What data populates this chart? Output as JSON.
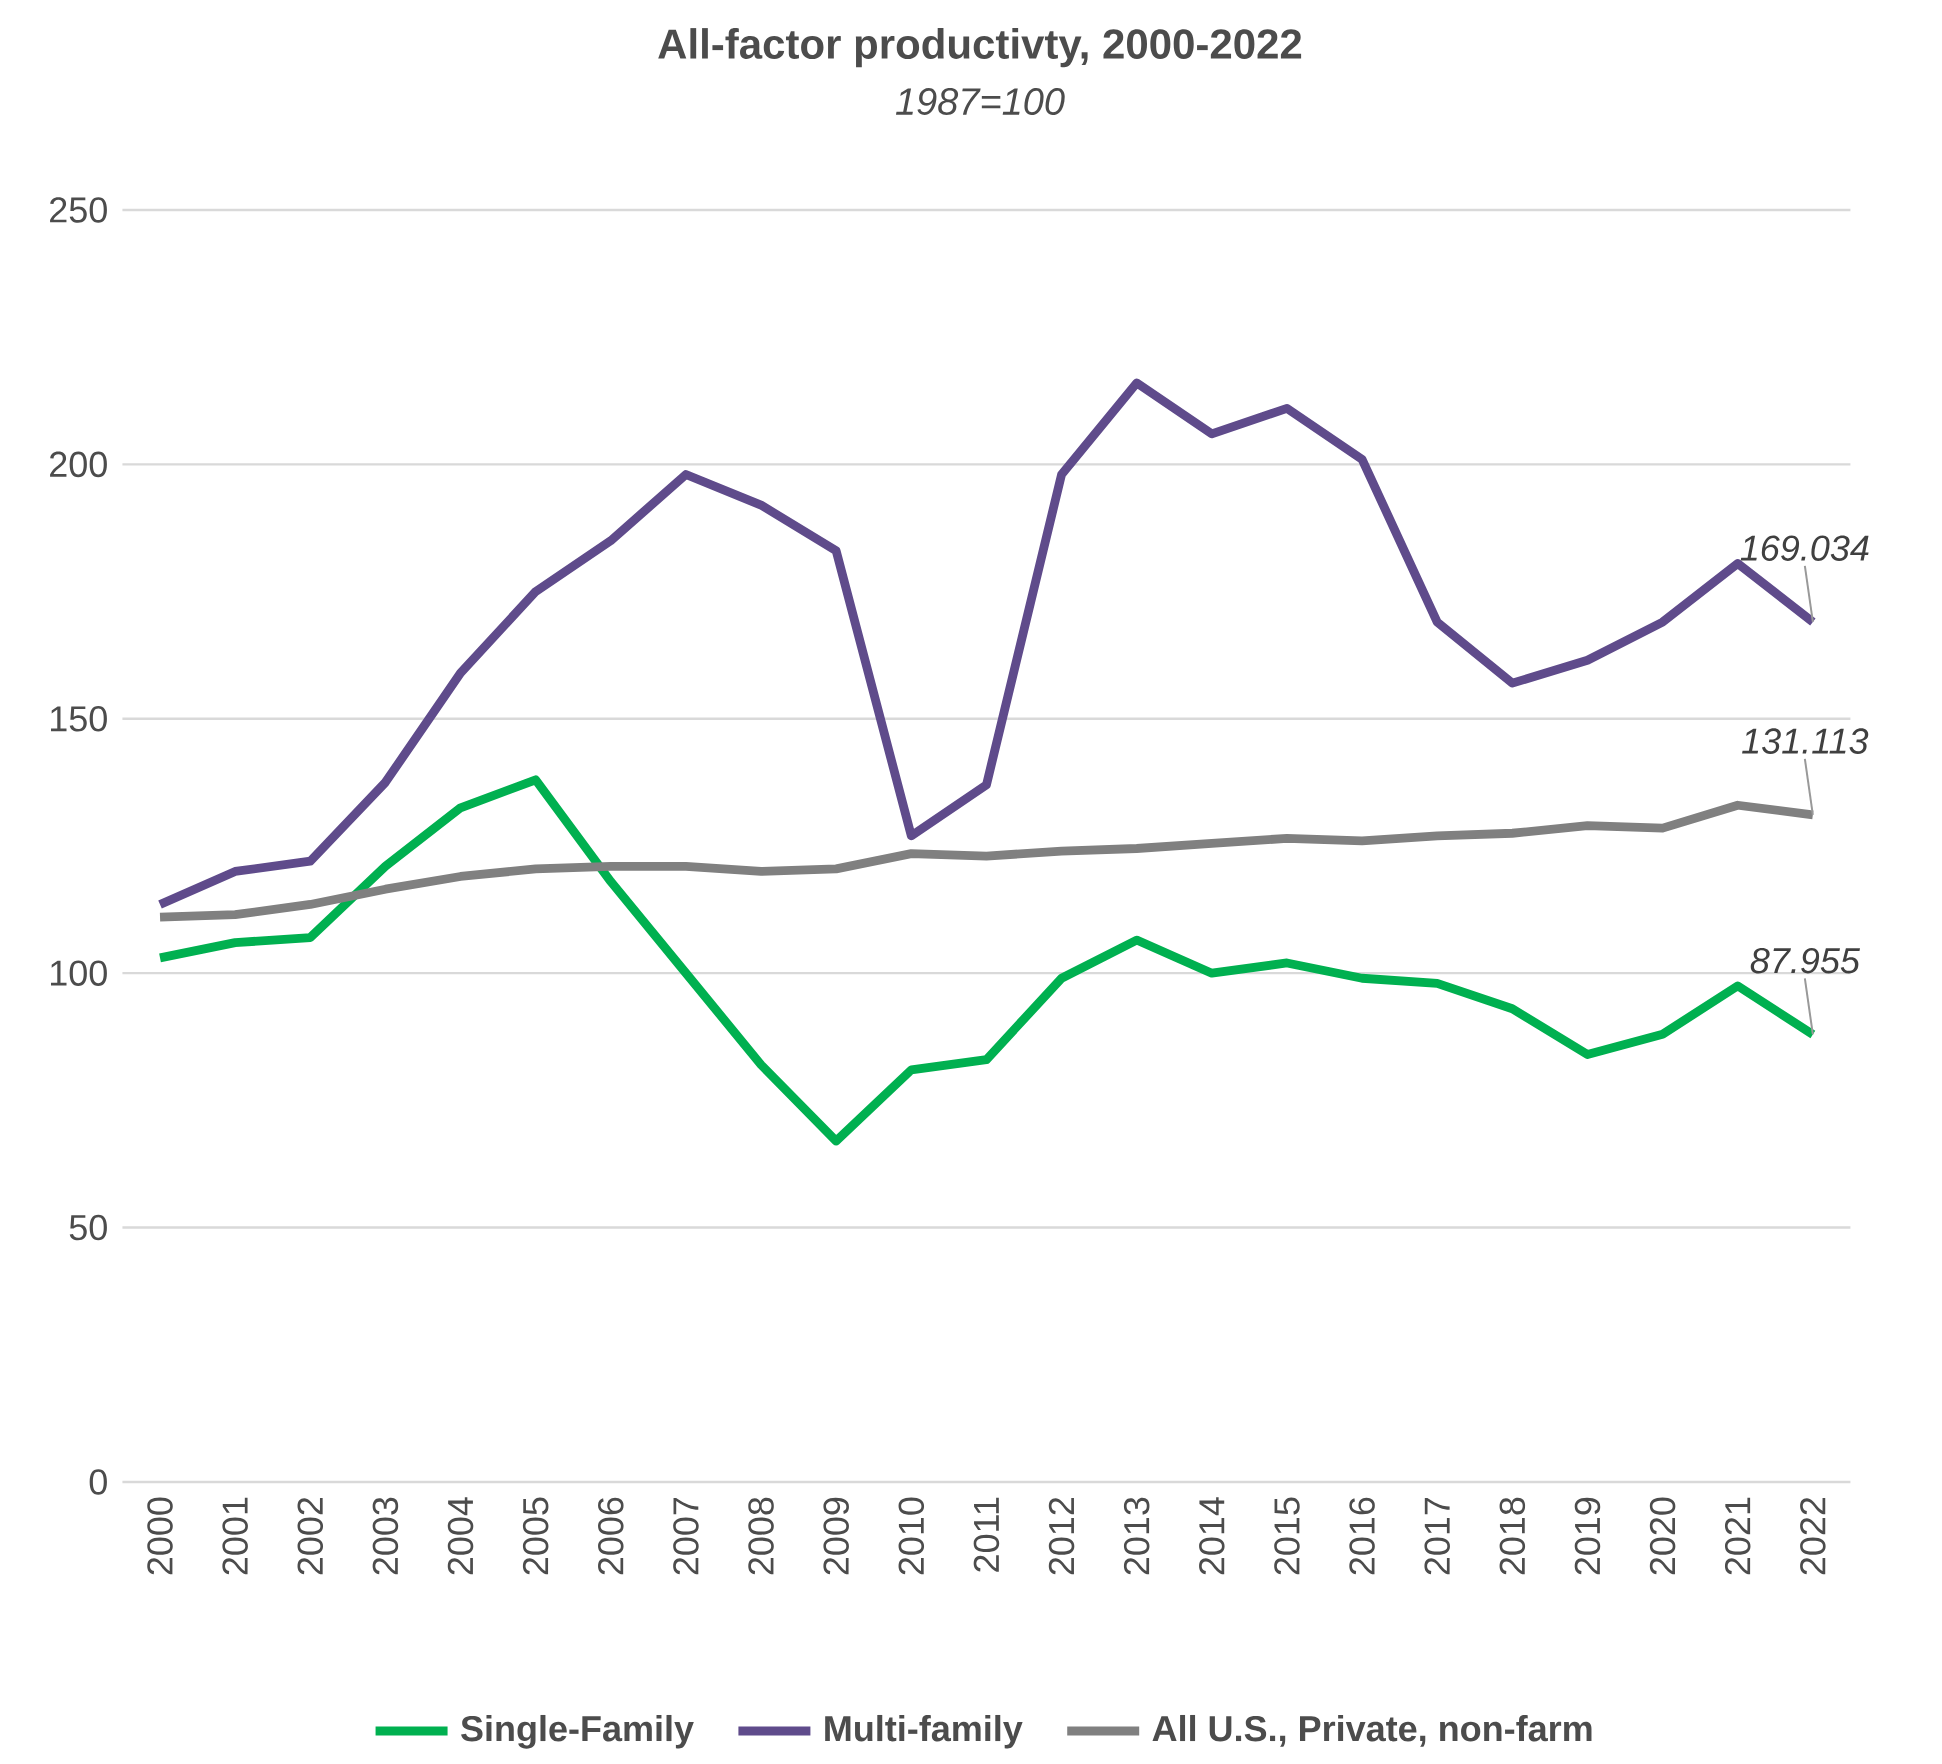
{
  "chart_data": {
    "type": "line",
    "title": "All-factor productivty, 2000-2022",
    "subtitle": "1987=100",
    "categories": [
      "2000",
      "2001",
      "2002",
      "2003",
      "2004",
      "2005",
      "2006",
      "2007",
      "2008",
      "2009",
      "2010",
      "2011",
      "2012",
      "2013",
      "2014",
      "2015",
      "2016",
      "2017",
      "2018",
      "2019",
      "2020",
      "2021",
      "2022"
    ],
    "series": [
      {
        "name": "Single-Family",
        "color": "#00b050",
        "values": [
          103,
          106,
          107,
          121,
          132.5,
          138,
          118,
          100,
          82,
          67,
          81,
          83,
          99,
          106.5,
          100,
          102,
          99,
          98,
          93,
          84,
          88,
          97.5,
          87.955
        ],
        "value_labels": [
          null,
          null,
          null,
          null,
          null,
          null,
          null,
          null,
          null,
          null,
          null,
          null,
          null,
          null,
          null,
          null,
          null,
          null,
          null,
          null,
          null,
          null,
          "87.955"
        ]
      },
      {
        "name": "Multi-family",
        "color": "#5f4b8b",
        "values": [
          113.5,
          120,
          122,
          137.5,
          159,
          175,
          185,
          198,
          192,
          183,
          127,
          137,
          198,
          216,
          206,
          211,
          201,
          169,
          157,
          161.5,
          169,
          180.5,
          169.034
        ],
        "value_labels": [
          null,
          null,
          null,
          null,
          null,
          null,
          null,
          null,
          null,
          null,
          null,
          null,
          null,
          null,
          null,
          null,
          null,
          null,
          null,
          null,
          null,
          null,
          "169.034"
        ]
      },
      {
        "name": "All U.S., Private, non-farm",
        "color": "#808080",
        "values": [
          111,
          111.5,
          113.5,
          116.5,
          119,
          120.5,
          121,
          121,
          120,
          120.5,
          123.5,
          123,
          124,
          124.5,
          125.5,
          126.5,
          126,
          127,
          127.5,
          129,
          128.5,
          133,
          131.113
        ],
        "value_labels": [
          null,
          null,
          null,
          null,
          null,
          null,
          null,
          null,
          null,
          null,
          null,
          null,
          null,
          null,
          null,
          null,
          null,
          null,
          null,
          null,
          null,
          null,
          "131.113"
        ]
      }
    ],
    "ylim": [
      0,
      250
    ],
    "yticks": [
      0,
      50,
      100,
      150,
      200,
      250
    ],
    "grid": "y",
    "legend": "bottom",
    "marker": "none",
    "line_style": "solid"
  }
}
